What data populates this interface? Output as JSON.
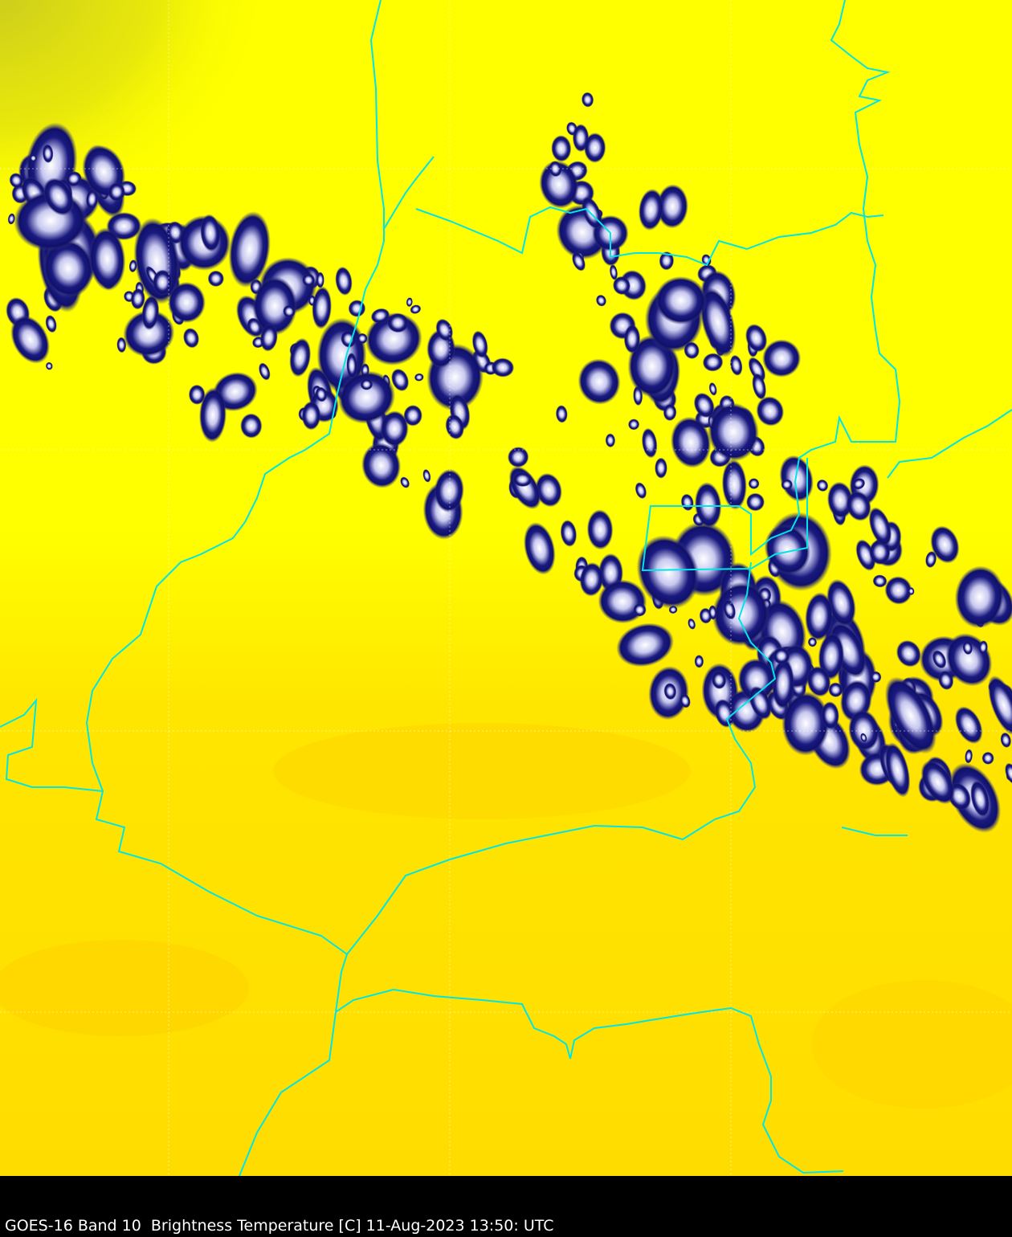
{
  "caption": "GOES-16 Band 10  Brightness Temperature [C] 11-Aug-2023 13:50: UTC",
  "map": {
    "satellite": "GOES-16",
    "band": "Band 10",
    "quantity": "Brightness Temperature [C]",
    "date": "11-Aug-2023",
    "time": "13:50 UTC",
    "colors": {
      "warm": "#ffd700",
      "mid": "#ffff00",
      "dry_air": "#d8d810",
      "cloud_edge": "#101070",
      "cloud_top": "#f0f0ff",
      "border": "#00e5e5",
      "grid": "#ffffff"
    }
  }
}
